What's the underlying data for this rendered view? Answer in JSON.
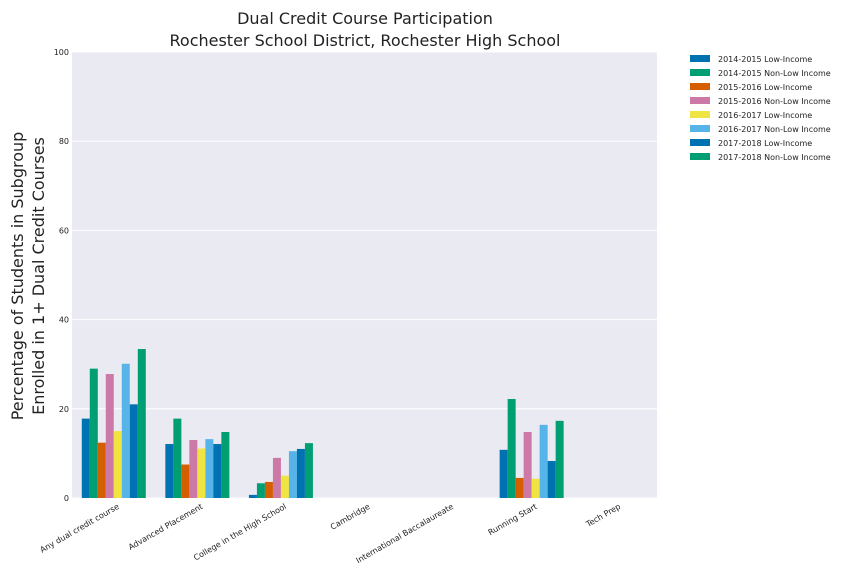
{
  "chart_data": {
    "type": "bar",
    "title": [
      "Dual Credit Course Participation",
      "Rochester School District, Rochester High School"
    ],
    "xlabel": "",
    "ylabel": [
      "Percentage of Students in Subgroup",
      "Enrolled in 1+ Dual Credit Courses"
    ],
    "ylim": [
      0,
      100
    ],
    "yticks": [
      "0",
      "20",
      "40",
      "60",
      "80",
      "100"
    ],
    "grid": true,
    "legend_position": "outside-top-right",
    "categories": [
      "Any dual credit course",
      "Advanced Placement",
      "College in the High School",
      "Cambridge",
      "International Baccalaureate",
      "Running Start",
      "Tech Prep"
    ],
    "series": [
      {
        "name": "2014-2015 Low-Income",
        "color": "#0072b2",
        "values": [
          17.8,
          12.1,
          0.7,
          0,
          0,
          10.8,
          0
        ]
      },
      {
        "name": "2014-2015 Non-Low Income",
        "color": "#009e73",
        "values": [
          29.0,
          17.8,
          3.3,
          0,
          0,
          22.2,
          0
        ]
      },
      {
        "name": "2015-2016 Low-Income",
        "color": "#d55e00",
        "values": [
          12.4,
          7.5,
          3.6,
          0,
          0,
          4.5,
          0
        ]
      },
      {
        "name": "2015-2016 Non-Low Income",
        "color": "#cc79a7",
        "values": [
          27.8,
          13.0,
          9.0,
          0,
          0,
          14.8,
          0
        ]
      },
      {
        "name": "2016-2017 Low-Income",
        "color": "#f0e442",
        "values": [
          15.0,
          11.1,
          5.0,
          0,
          0,
          4.3,
          0
        ]
      },
      {
        "name": "2016-2017 Non-Low Income",
        "color": "#56b4e9",
        "values": [
          30.1,
          13.2,
          10.5,
          0,
          0,
          16.4,
          0
        ]
      },
      {
        "name": "2017-2018 Low-Income",
        "color": "#0072b2",
        "values": [
          21.0,
          12.1,
          11.0,
          0,
          0,
          8.3,
          0
        ]
      },
      {
        "name": "2017-2018 Non-Low Income",
        "color": "#009e73",
        "values": [
          33.4,
          14.8,
          12.3,
          0,
          0,
          17.3,
          0
        ]
      }
    ]
  }
}
